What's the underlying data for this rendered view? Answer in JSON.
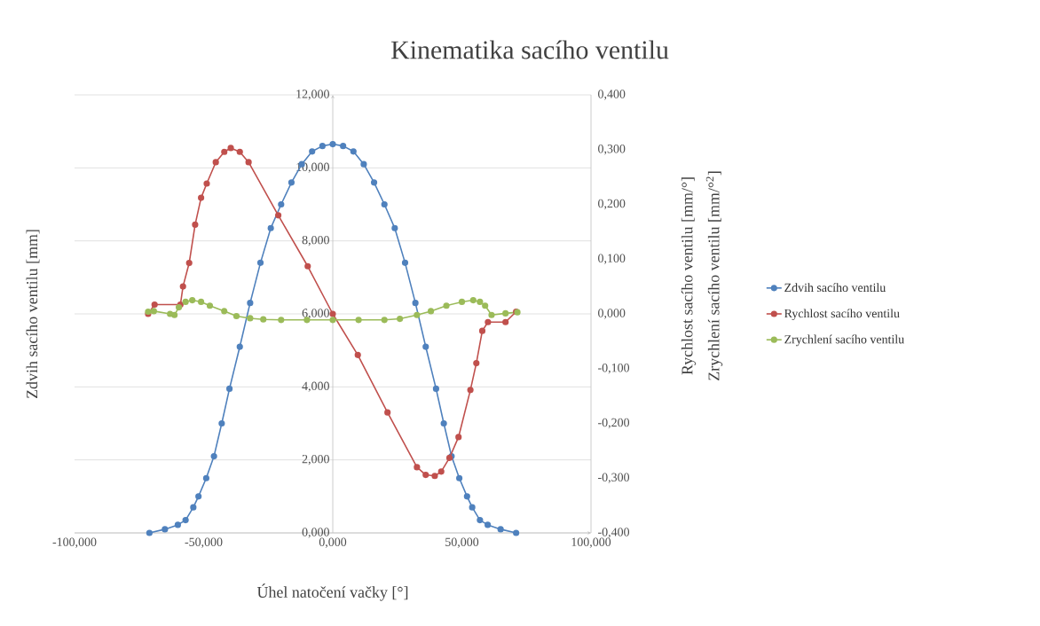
{
  "chart_data": {
    "type": "line",
    "title": "Kinematika sacího ventilu",
    "xlabel": "Úhel natočení vačky [°]",
    "ylabel": "Zdvih sacího ventilu [mm]",
    "y2label": [
      "Rychlost sacího ventilu [mm/°]",
      "Zrychlení sacího ventilu [mm/°$^{2}$]"
    ],
    "series": [
      {
        "name": "Zdvih sacího ventilu",
        "color": "#4f81bd",
        "x": [
          -71,
          -65,
          -60,
          -57,
          -54,
          -52,
          -49,
          -46,
          -43,
          -40,
          -36,
          -32,
          -28,
          -24,
          -20,
          -16,
          -12,
          -8,
          -4,
          0,
          4,
          8,
          12,
          16,
          20,
          24,
          28,
          32,
          36,
          40,
          43,
          46,
          49,
          52,
          54,
          57,
          60,
          65,
          71
        ],
        "values": [
          0,
          0.1,
          0.22,
          0.35,
          0.7,
          1.0,
          1.5,
          2.1,
          3.0,
          3.95,
          5.1,
          6.3,
          7.4,
          8.35,
          9.0,
          9.6,
          10.1,
          10.45,
          10.6,
          10.65,
          10.6,
          10.45,
          10.1,
          9.6,
          9.0,
          8.35,
          7.4,
          6.3,
          5.1,
          3.95,
          3.0,
          2.1,
          1.5,
          1.0,
          0.7,
          0.35,
          0.22,
          0.1,
          0
        ]
      },
      {
        "name": "Rychlost sacího ventilu",
        "color": "#c0504d",
        "axis": "y2",
        "x": [
          -71.5,
          -69,
          -59,
          -58,
          -55.6,
          -53.3,
          -51,
          -48.8,
          -45.3,
          -42,
          -39.5,
          -36,
          -32.6,
          -21.1,
          -9.7,
          0,
          9.7,
          21.2,
          32.6,
          36,
          39.5,
          42,
          45.2,
          48.7,
          53.3,
          55.6,
          57.9,
          60.1,
          66.9,
          71
        ],
        "values": [
          0,
          0.017,
          0.017,
          0.05,
          0.093,
          0.163,
          0.212,
          0.238,
          0.277,
          0.296,
          0.303,
          0.296,
          0.277,
          0.18,
          0.087,
          0,
          -0.075,
          -0.18,
          -0.28,
          -0.294,
          -0.296,
          -0.288,
          -0.263,
          -0.225,
          -0.139,
          -0.09,
          -0.031,
          -0.015,
          -0.015,
          0.004
        ]
      },
      {
        "name": "Zrychlení sacího ventilu",
        "color": "#9bbb59",
        "axis": "y2",
        "x": [
          -71.5,
          -69.3,
          -63,
          -61.3,
          -59.6,
          -57,
          -54.4,
          -51,
          -47.6,
          -42,
          -37.3,
          -32,
          -26.9,
          -20,
          -10,
          0,
          10,
          20,
          26,
          32.6,
          38,
          44,
          50,
          54.4,
          57,
          59,
          61.5,
          66.9,
          71.5
        ],
        "values": [
          0.004,
          0.005,
          0.0,
          -0.002,
          0.012,
          0.022,
          0.025,
          0.022,
          0.015,
          0.005,
          -0.004,
          -0.008,
          -0.01,
          -0.011,
          -0.011,
          -0.011,
          -0.011,
          -0.011,
          -0.009,
          -0.002,
          0.005,
          0.015,
          0.022,
          0.025,
          0.022,
          0.015,
          -0.002,
          0.001,
          0.003
        ]
      }
    ],
    "xlim": [
      -100,
      100
    ],
    "ylim": [
      0,
      12
    ],
    "y2lim": [
      -0.4,
      0.4
    ],
    "xticks": [
      {
        "value": -100,
        "label": "-100,000"
      },
      {
        "value": -50,
        "label": "-50,000"
      },
      {
        "value": 0,
        "label": "0,000"
      },
      {
        "value": 50,
        "label": "50,000"
      },
      {
        "value": 100,
        "label": "100,000"
      }
    ],
    "yticks": [
      {
        "value": 0,
        "label": "0,000"
      },
      {
        "value": 2,
        "label": "2,000"
      },
      {
        "value": 4,
        "label": "4,000"
      },
      {
        "value": 6,
        "label": "6,000"
      },
      {
        "value": 8,
        "label": "8,000"
      },
      {
        "value": 10,
        "label": "10,000"
      },
      {
        "value": 12,
        "label": "12,000"
      }
    ],
    "y2ticks": [
      {
        "value": -0.4,
        "label": "-0,400"
      },
      {
        "value": -0.3,
        "label": "-0,300"
      },
      {
        "value": -0.2,
        "label": "-0,200"
      },
      {
        "value": -0.1,
        "label": "-0,100"
      },
      {
        "value": 0,
        "label": "0,000"
      },
      {
        "value": 0.1,
        "label": "0,100"
      },
      {
        "value": 0.2,
        "label": "0,200"
      },
      {
        "value": 0.3,
        "label": "0,300"
      },
      {
        "value": 0.4,
        "label": "0,400"
      }
    ],
    "grid": "y",
    "legend": "right",
    "marker": "circle",
    "line_style": "solid"
  }
}
